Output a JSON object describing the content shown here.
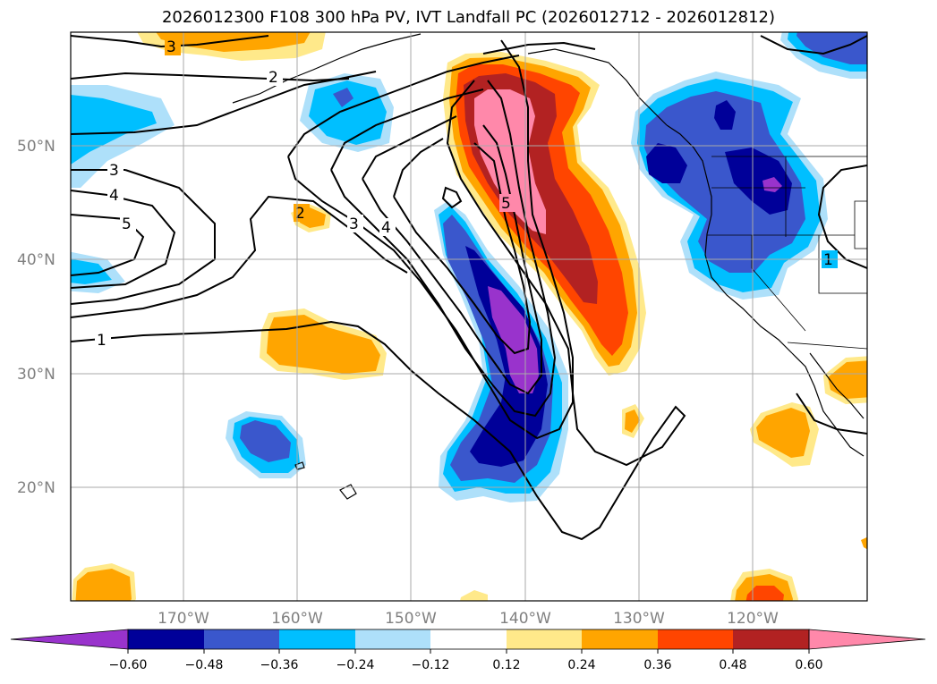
{
  "title": "2026012300 F108 300 hPa PV, IVT Landfall PC (2026012712 - 2026012812)",
  "map": {
    "lon_range": [
      -180,
      -110
    ],
    "lat_range": [
      10,
      60
    ],
    "lon_ticks": [
      "170°W",
      "160°W",
      "150°W",
      "140°W",
      "130°W",
      "120°W"
    ],
    "lat_ticks": [
      "50°N",
      "40°N",
      "30°N",
      "20°N"
    ],
    "grid": true,
    "line_contour_labels": [
      "3",
      "2",
      "3",
      "4",
      "5",
      "2",
      "3",
      "4",
      "5",
      "1",
      "1"
    ]
  },
  "colorbar": {
    "orientation": "horizontal",
    "extend": "both",
    "ticks": [
      "−0.60",
      "−0.48",
      "−0.36",
      "−0.24",
      "−0.12",
      "0.12",
      "0.24",
      "0.36",
      "0.48",
      "0.60"
    ],
    "colors": [
      "#9933cc",
      "#000099",
      "#3a57cc",
      "#00bfff",
      "#aee0fa",
      "#ffffff",
      "#ffe98a",
      "#ffa500",
      "#ff4500",
      "#b22222",
      "#ff88aa",
      "#ff88aa"
    ]
  }
}
